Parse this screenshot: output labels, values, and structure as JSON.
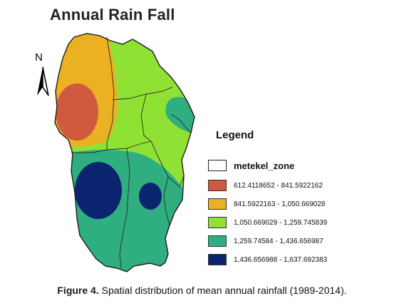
{
  "map": {
    "title": "Annual Rain Fall",
    "north_label": "N",
    "north_arrow_icon": "north-arrow-icon"
  },
  "legend": {
    "title": "Legend",
    "zone_layer": {
      "label": "metekel_zone",
      "color": "#ffffff"
    },
    "classes": [
      {
        "label": "612.4118652 - 841.5922162",
        "color": "#d05a3f"
      },
      {
        "label": "841.5922163 - 1,050.669028",
        "color": "#ecb023"
      },
      {
        "label": "1,050.669029 - 1,259.745839",
        "color": "#8fe234"
      },
      {
        "label": "1,259.74584 - 1,436.656987",
        "color": "#2fae80"
      },
      {
        "label": "1,436.656988 - 1,637.692383",
        "color": "#0b2470"
      }
    ]
  },
  "caption": {
    "label": "Figure 4.",
    "text": " Spatial distribution of mean annual rainfall (1989-2014)."
  }
}
